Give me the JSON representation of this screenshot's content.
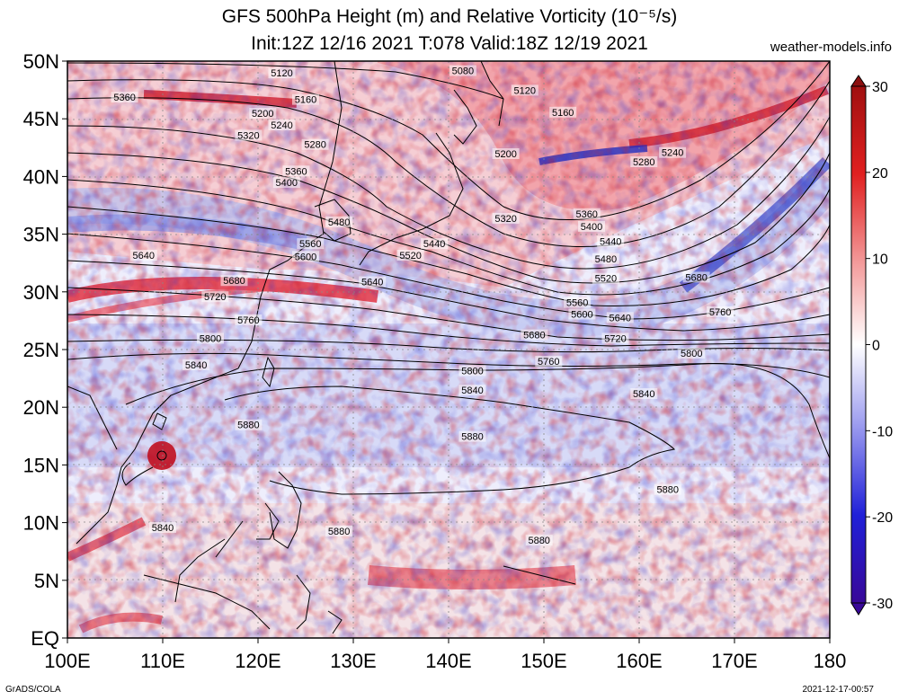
{
  "header": {
    "title_line1": "GFS 500hPa Height (m) and Relative Vorticity (10⁻⁵/s)",
    "title_line2": "Init:12Z 12/16 2021 T:078 Valid:18Z 12/19 2021",
    "credit": "weather-models.info"
  },
  "footer": {
    "left": "GrADS/COLA",
    "right": "2021-12-17-00:57"
  },
  "map": {
    "lat_labels": [
      "50N",
      "45N",
      "40N",
      "35N",
      "30N",
      "25N",
      "20N",
      "15N",
      "10N",
      "5N",
      "EQ"
    ],
    "lon_labels": [
      "100E",
      "110E",
      "120E",
      "130E",
      "140E",
      "150E",
      "160E",
      "170E",
      "180"
    ],
    "contour_labels": [
      {
        "text": "5120",
        "lon": 122.5,
        "lat": 48.9
      },
      {
        "text": "5080",
        "lon": 141.5,
        "lat": 49.1
      },
      {
        "text": "5360",
        "lon": 106.0,
        "lat": 46.8
      },
      {
        "text": "5160",
        "lon": 125.0,
        "lat": 46.6
      },
      {
        "text": "5120",
        "lon": 148.0,
        "lat": 47.4
      },
      {
        "text": "5200",
        "lon": 120.5,
        "lat": 45.4
      },
      {
        "text": "5240",
        "lon": 122.5,
        "lat": 44.4
      },
      {
        "text": "5160",
        "lon": 152.0,
        "lat": 45.5
      },
      {
        "text": "5320",
        "lon": 119.0,
        "lat": 43.5
      },
      {
        "text": "5280",
        "lon": 126.0,
        "lat": 42.7
      },
      {
        "text": "5200",
        "lon": 146.0,
        "lat": 41.9
      },
      {
        "text": "5240",
        "lon": 163.5,
        "lat": 42.0
      },
      {
        "text": "5280",
        "lon": 160.5,
        "lat": 41.2
      },
      {
        "text": "5360",
        "lon": 124.0,
        "lat": 40.4
      },
      {
        "text": "5400",
        "lon": 123.0,
        "lat": 39.4
      },
      {
        "text": "5320",
        "lon": 146.0,
        "lat": 36.3
      },
      {
        "text": "5360",
        "lon": 154.5,
        "lat": 36.7
      },
      {
        "text": "5480",
        "lon": 128.5,
        "lat": 36.0
      },
      {
        "text": "5400",
        "lon": 155.0,
        "lat": 35.6
      },
      {
        "text": "5560",
        "lon": 125.5,
        "lat": 34.1
      },
      {
        "text": "5440",
        "lon": 138.5,
        "lat": 34.1
      },
      {
        "text": "5440",
        "lon": 157.0,
        "lat": 34.3
      },
      {
        "text": "5600",
        "lon": 125.0,
        "lat": 33.0
      },
      {
        "text": "5520",
        "lon": 136.0,
        "lat": 33.1
      },
      {
        "text": "5640",
        "lon": 108.0,
        "lat": 33.1
      },
      {
        "text": "5480",
        "lon": 156.5,
        "lat": 32.8
      },
      {
        "text": "5640",
        "lon": 132.0,
        "lat": 30.8
      },
      {
        "text": "5520",
        "lon": 156.5,
        "lat": 31.1
      },
      {
        "text": "5680",
        "lon": 117.5,
        "lat": 30.9
      },
      {
        "text": "5680",
        "lon": 166.0,
        "lat": 31.2
      },
      {
        "text": "5720",
        "lon": 115.5,
        "lat": 29.5
      },
      {
        "text": "5560",
        "lon": 153.5,
        "lat": 29.0
      },
      {
        "text": "5600",
        "lon": 154.0,
        "lat": 28.0
      },
      {
        "text": "5640",
        "lon": 158.0,
        "lat": 27.7
      },
      {
        "text": "5760",
        "lon": 119.0,
        "lat": 27.5
      },
      {
        "text": "5760",
        "lon": 168.5,
        "lat": 28.2
      },
      {
        "text": "5680",
        "lon": 149.0,
        "lat": 26.2
      },
      {
        "text": "5720",
        "lon": 157.5,
        "lat": 25.9
      },
      {
        "text": "5800",
        "lon": 115.0,
        "lat": 25.9
      },
      {
        "text": "5800",
        "lon": 165.5,
        "lat": 24.6
      },
      {
        "text": "5840",
        "lon": 113.5,
        "lat": 23.6
      },
      {
        "text": "5760",
        "lon": 150.5,
        "lat": 23.9
      },
      {
        "text": "5800",
        "lon": 142.5,
        "lat": 23.1
      },
      {
        "text": "5840",
        "lon": 142.5,
        "lat": 21.4
      },
      {
        "text": "5840",
        "lon": 160.5,
        "lat": 21.1
      },
      {
        "text": "5880",
        "lon": 119.0,
        "lat": 18.4
      },
      {
        "text": "5880",
        "lon": 142.5,
        "lat": 17.4
      },
      {
        "text": "5880",
        "lon": 163.0,
        "lat": 12.8
      },
      {
        "text": "5840",
        "lon": 110.0,
        "lat": 9.5
      },
      {
        "text": "5880",
        "lon": 128.5,
        "lat": 9.2
      },
      {
        "text": "5880",
        "lon": 149.5,
        "lat": 8.4
      }
    ]
  },
  "colorbar": {
    "tick_labels": [
      "30",
      "20",
      "10",
      "0",
      "-10",
      "-20",
      "-30"
    ],
    "ticks": [
      30,
      20,
      10,
      0,
      -10,
      -20,
      -30
    ],
    "range": [
      -30,
      30
    ],
    "colors": {
      "positive": "#c8101a",
      "zero": "#ffffff",
      "negative": "#2a10b0"
    }
  }
}
